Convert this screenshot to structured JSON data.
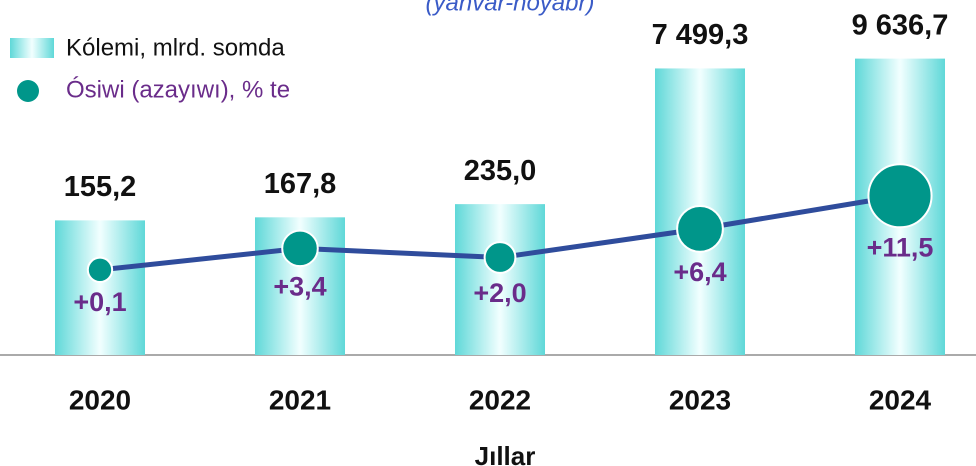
{
  "chart_data": {
    "type": "bar",
    "subtitle": "(yanvar-noyabr)",
    "x_label": "Jıllar",
    "categories": [
      "2020",
      "2021",
      "2022",
      "2023",
      "2024"
    ],
    "log_scale": true,
    "ylim": [
      5,
      20000
    ],
    "y2lim": [
      -13,
      37
    ],
    "legend": "top-left",
    "series": [
      {
        "name": "Kólemi, mlrd. somda",
        "color": "#5fd8d8",
        "values": [
          155.2,
          167.8,
          235.0,
          7499.3,
          9636.7
        ],
        "value_labels": [
          "155,2",
          "167,8",
          "235,0",
          "7 499,3",
          "9 636,7"
        ]
      },
      {
        "name": "Ósiwi (azayıwı), % te",
        "type": "line",
        "axis": "y2",
        "color": "#00968a",
        "line_color": "#2f4c9c",
        "label_color": "#6a2c8a",
        "values": [
          0.1,
          3.4,
          2.0,
          6.4,
          11.5
        ],
        "value_labels": [
          "+0,1",
          "+3,4",
          "+2,0",
          "+6,4",
          "+11,5"
        ]
      }
    ]
  }
}
